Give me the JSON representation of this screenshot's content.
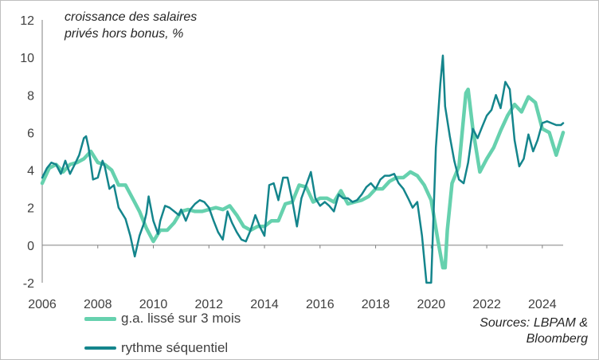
{
  "chart_data": {
    "type": "line",
    "title": "croissance des salaires privés hors bonus, %",
    "title_lines": [
      "croissance des salaires",
      "privés hors bonus, %"
    ],
    "xlabel": "",
    "ylabel": "",
    "xlim": [
      2006,
      2024.75
    ],
    "ylim": [
      -2,
      12
    ],
    "x_ticks": [
      2006,
      2008,
      2010,
      2012,
      2014,
      2016,
      2018,
      2020,
      2022,
      2024
    ],
    "y_ticks": [
      -2,
      0,
      2,
      4,
      6,
      8,
      10,
      12
    ],
    "grid": false,
    "legend_position": "bottom-left",
    "source": [
      "Sources: LBPAM &",
      "Bloomberg"
    ],
    "series": [
      {
        "name": "g.a. lissé sur 3 mois",
        "color": "#66D1AE",
        "width": 4.5,
        "x": [
          2006.0,
          2006.25,
          2006.5,
          2006.75,
          2007.0,
          2007.25,
          2007.5,
          2007.75,
          2008.0,
          2008.25,
          2008.5,
          2008.75,
          2009.0,
          2009.25,
          2009.5,
          2009.75,
          2010.0,
          2010.25,
          2010.5,
          2010.75,
          2011.0,
          2011.25,
          2011.5,
          2011.75,
          2012.0,
          2012.25,
          2012.5,
          2012.75,
          2013.0,
          2013.25,
          2013.5,
          2013.75,
          2014.0,
          2014.25,
          2014.5,
          2014.75,
          2015.0,
          2015.25,
          2015.5,
          2015.75,
          2016.0,
          2016.25,
          2016.5,
          2016.75,
          2017.0,
          2017.25,
          2017.5,
          2017.75,
          2018.0,
          2018.25,
          2018.5,
          2018.75,
          2019.0,
          2019.25,
          2019.5,
          2019.75,
          2020.0,
          2020.25,
          2020.42,
          2020.5,
          2020.58,
          2020.75,
          2021.0,
          2021.25,
          2021.33,
          2021.5,
          2021.75,
          2022.0,
          2022.25,
          2022.5,
          2022.75,
          2023.0,
          2023.25,
          2023.5,
          2023.75,
          2024.0,
          2024.25,
          2024.5,
          2024.75
        ],
        "y": [
          3.3,
          4.1,
          4.3,
          3.9,
          4.3,
          4.4,
          4.6,
          5.0,
          4.4,
          4.3,
          4.0,
          3.2,
          3.2,
          2.5,
          1.8,
          0.9,
          0.2,
          0.8,
          0.8,
          1.2,
          1.8,
          1.9,
          1.8,
          1.8,
          1.9,
          2.0,
          1.9,
          2.1,
          1.6,
          1.0,
          0.8,
          1.0,
          1.0,
          1.3,
          1.3,
          2.2,
          2.3,
          3.2,
          3.1,
          2.3,
          2.5,
          2.5,
          2.3,
          2.9,
          2.2,
          2.3,
          2.4,
          2.6,
          3.0,
          3.0,
          3.4,
          3.6,
          3.6,
          3.9,
          3.7,
          3.2,
          2.4,
          0.2,
          -1.2,
          -1.2,
          0.8,
          3.3,
          4.2,
          8.1,
          8.3,
          6.2,
          3.9,
          4.6,
          5.2,
          6.1,
          6.9,
          7.5,
          7.1,
          7.9,
          7.6,
          6.2,
          6.0,
          4.8,
          6.0
        ]
      },
      {
        "name": "rythme séquentiel",
        "color": "#14858C",
        "width": 2.5,
        "x": [
          2006.0,
          2006.17,
          2006.33,
          2006.5,
          2006.67,
          2006.83,
          2007.0,
          2007.17,
          2007.33,
          2007.5,
          2007.58,
          2007.67,
          2007.83,
          2008.0,
          2008.17,
          2008.25,
          2008.42,
          2008.58,
          2008.75,
          2009.0,
          2009.17,
          2009.33,
          2009.5,
          2009.67,
          2009.75,
          2009.83,
          2010.0,
          2010.17,
          2010.25,
          2010.42,
          2010.58,
          2010.75,
          2010.92,
          2011.0,
          2011.17,
          2011.33,
          2011.5,
          2011.67,
          2011.83,
          2012.0,
          2012.17,
          2012.33,
          2012.5,
          2012.67,
          2012.83,
          2013.0,
          2013.17,
          2013.33,
          2013.5,
          2013.67,
          2013.83,
          2014.0,
          2014.17,
          2014.33,
          2014.5,
          2014.67,
          2014.83,
          2015.0,
          2015.17,
          2015.33,
          2015.5,
          2015.67,
          2015.83,
          2016.0,
          2016.17,
          2016.33,
          2016.5,
          2016.67,
          2016.83,
          2017.0,
          2017.17,
          2017.33,
          2017.5,
          2017.67,
          2017.83,
          2018.0,
          2018.17,
          2018.33,
          2018.5,
          2018.67,
          2018.83,
          2019.0,
          2019.17,
          2019.33,
          2019.5,
          2019.67,
          2019.83,
          2020.0,
          2020.17,
          2020.33,
          2020.42,
          2020.5,
          2020.67,
          2020.83,
          2021.0,
          2021.17,
          2021.33,
          2021.5,
          2021.67,
          2021.83,
          2022.0,
          2022.17,
          2022.33,
          2022.5,
          2022.67,
          2022.83,
          2023.0,
          2023.17,
          2023.33,
          2023.5,
          2023.67,
          2023.83,
          2024.0,
          2024.17,
          2024.33,
          2024.5,
          2024.67,
          2024.75
        ],
        "y": [
          3.6,
          4.1,
          4.4,
          4.3,
          3.8,
          4.5,
          3.8,
          4.3,
          4.8,
          5.7,
          5.8,
          5.2,
          3.5,
          3.6,
          4.5,
          4.2,
          3.0,
          3.2,
          2.0,
          1.4,
          0.5,
          -0.6,
          0.5,
          1.2,
          1.7,
          2.6,
          1.3,
          0.6,
          1.3,
          2.1,
          2.0,
          1.8,
          1.6,
          1.9,
          1.3,
          1.9,
          2.2,
          2.4,
          2.3,
          2.0,
          1.3,
          0.7,
          0.3,
          1.8,
          1.2,
          0.7,
          0.3,
          0.2,
          0.8,
          1.6,
          1.0,
          0.5,
          3.2,
          3.3,
          2.4,
          3.6,
          3.6,
          2.4,
          1.0,
          2.5,
          3.2,
          3.9,
          2.5,
          2.1,
          2.3,
          2.1,
          1.8,
          2.7,
          2.5,
          2.5,
          2.3,
          2.4,
          2.7,
          3.1,
          3.3,
          3.0,
          3.5,
          3.7,
          3.7,
          3.8,
          3.3,
          3.0,
          2.5,
          2.0,
          2.3,
          0.5,
          -2.0,
          -2.0,
          5.2,
          8.6,
          10.1,
          7.4,
          5.8,
          4.5,
          3.5,
          3.3,
          4.4,
          6.2,
          5.7,
          6.3,
          6.9,
          7.2,
          8.0,
          7.3,
          8.7,
          8.3,
          5.6,
          4.2,
          4.6,
          5.9,
          5.0,
          5.6,
          6.5,
          6.6,
          6.5,
          6.4,
          6.4,
          6.5
        ]
      }
    ]
  }
}
